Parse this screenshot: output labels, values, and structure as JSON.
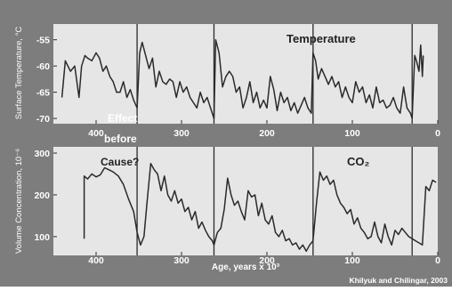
{
  "credit": "Khilyuk and Chilingar, 2003",
  "annotations": {
    "effect": "Effect",
    "before": "before",
    "cause": "Cause?"
  },
  "colors": {
    "background": "#7d7d7d",
    "plot_area": "#e6e6e6",
    "line": "#2a2a2a",
    "text_light": "#ffffff",
    "text_dark": "#222222"
  },
  "chart_data": [
    {
      "type": "line",
      "title": "",
      "series_label": "Temperature",
      "ylabel": "Surface Temperature, °C",
      "xlabel": "",
      "xlim": [
        450,
        0
      ],
      "ylim": [
        -71,
        -52
      ],
      "xticks": [
        400,
        300,
        200,
        100,
        0
      ],
      "yticks": [
        -55,
        -60,
        -65,
        -70
      ],
      "ytick_labels": [
        "-55",
        "-60",
        "-65",
        "-70"
      ],
      "grid": false,
      "vertical_markers": [
        352,
        262,
        146,
        30
      ],
      "series": [
        {
          "name": "Temperature",
          "x": [
            440,
            436,
            430,
            425,
            420,
            417,
            413,
            410,
            405,
            400,
            396,
            392,
            388,
            384,
            380,
            376,
            372,
            368,
            364,
            360,
            356,
            352,
            349,
            346,
            342,
            338,
            334,
            330,
            326,
            322,
            318,
            314,
            310,
            306,
            302,
            298,
            294,
            290,
            286,
            282,
            278,
            274,
            270,
            266,
            262,
            260,
            256,
            252,
            248,
            244,
            240,
            236,
            232,
            228,
            224,
            220,
            216,
            212,
            208,
            204,
            200,
            196,
            192,
            188,
            184,
            180,
            176,
            172,
            168,
            164,
            160,
            156,
            152,
            148,
            146,
            143,
            140,
            136,
            132,
            128,
            124,
            120,
            116,
            112,
            108,
            104,
            100,
            96,
            92,
            88,
            84,
            80,
            76,
            72,
            68,
            64,
            60,
            56,
            52,
            48,
            44,
            40,
            36,
            32,
            30,
            27,
            25,
            22,
            20,
            18,
            17
          ],
          "y": [
            -66,
            -59,
            -61,
            -60,
            -66,
            -60,
            -58,
            -58.5,
            -59,
            -57.5,
            -58.5,
            -61,
            -60,
            -62,
            -63,
            -65,
            -65,
            -63,
            -66,
            -64.5,
            -66.5,
            -68,
            -57.5,
            -55.5,
            -58,
            -60.5,
            -58.5,
            -64,
            -61,
            -63,
            -63.5,
            -62.5,
            -63,
            -66,
            -63,
            -65,
            -64,
            -66,
            -67,
            -68,
            -65,
            -67,
            -66,
            -68,
            -70,
            -55,
            -57.5,
            -64,
            -62,
            -61,
            -62,
            -65,
            -64,
            -68,
            -66,
            -63,
            -67,
            -65,
            -68,
            -66.5,
            -68,
            -62,
            -64.5,
            -68.5,
            -65,
            -67,
            -66,
            -68.5,
            -67,
            -69,
            -67.5,
            -66,
            -68,
            -69,
            -57.5,
            -59,
            -62.5,
            -60.5,
            -62,
            -63.5,
            -62,
            -64,
            -63,
            -66,
            -64,
            -66,
            -67,
            -63,
            -65,
            -64,
            -67,
            -65.5,
            -68,
            -64,
            -67,
            -66.5,
            -68,
            -67.5,
            -66,
            -68,
            -69,
            -64,
            -68,
            -69,
            -70,
            -58,
            -59,
            -61,
            -56,
            -62,
            -58
          ]
        }
      ]
    },
    {
      "type": "line",
      "title": "",
      "series_label": "CO₂",
      "ylabel": "Volume Concentration, 10⁻⁶",
      "xlabel": "Age, years x 10³",
      "xlim": [
        450,
        0
      ],
      "ylim": [
        55,
        315
      ],
      "xticks": [
        400,
        300,
        200,
        100,
        0
      ],
      "yticks": [
        300,
        200,
        100
      ],
      "ytick_labels": [
        "300",
        "200",
        "100"
      ],
      "grid": false,
      "vertical_markers": [
        352,
        262,
        146,
        30
      ],
      "series": [
        {
          "name": "CO₂",
          "x": [
            414,
            414,
            410,
            405,
            400,
            395,
            390,
            385,
            380,
            374,
            368,
            362,
            356,
            352,
            348,
            344,
            340,
            336,
            332,
            328,
            324,
            320,
            316,
            312,
            308,
            304,
            300,
            296,
            292,
            288,
            284,
            280,
            276,
            272,
            268,
            264,
            262,
            258,
            254,
            250,
            246,
            242,
            238,
            234,
            230,
            226,
            222,
            218,
            214,
            210,
            206,
            202,
            198,
            194,
            190,
            186,
            182,
            178,
            174,
            170,
            166,
            162,
            158,
            154,
            150,
            146,
            142,
            138,
            134,
            130,
            126,
            122,
            118,
            114,
            110,
            106,
            102,
            98,
            94,
            90,
            86,
            82,
            78,
            74,
            70,
            66,
            62,
            58,
            54,
            50,
            46,
            42,
            38,
            34,
            30,
            26,
            22,
            18,
            14,
            10,
            6,
            2
          ],
          "y": [
            95,
            245,
            238,
            250,
            243,
            248,
            265,
            260,
            255,
            245,
            225,
            190,
            160,
            110,
            80,
            100,
            190,
            275,
            260,
            250,
            210,
            245,
            200,
            185,
            210,
            180,
            190,
            160,
            170,
            140,
            160,
            120,
            135,
            115,
            100,
            90,
            80,
            110,
            120,
            165,
            240,
            200,
            175,
            185,
            160,
            140,
            210,
            195,
            200,
            150,
            180,
            140,
            130,
            150,
            110,
            100,
            115,
            90,
            95,
            80,
            85,
            70,
            80,
            65,
            80,
            90,
            180,
            255,
            235,
            245,
            225,
            235,
            200,
            180,
            170,
            155,
            165,
            130,
            145,
            120,
            110,
            95,
            100,
            135,
            100,
            85,
            130,
            100,
            80,
            115,
            105,
            120,
            110,
            100,
            95,
            90,
            85,
            80,
            220,
            210,
            235,
            230
          ]
        }
      ]
    }
  ]
}
